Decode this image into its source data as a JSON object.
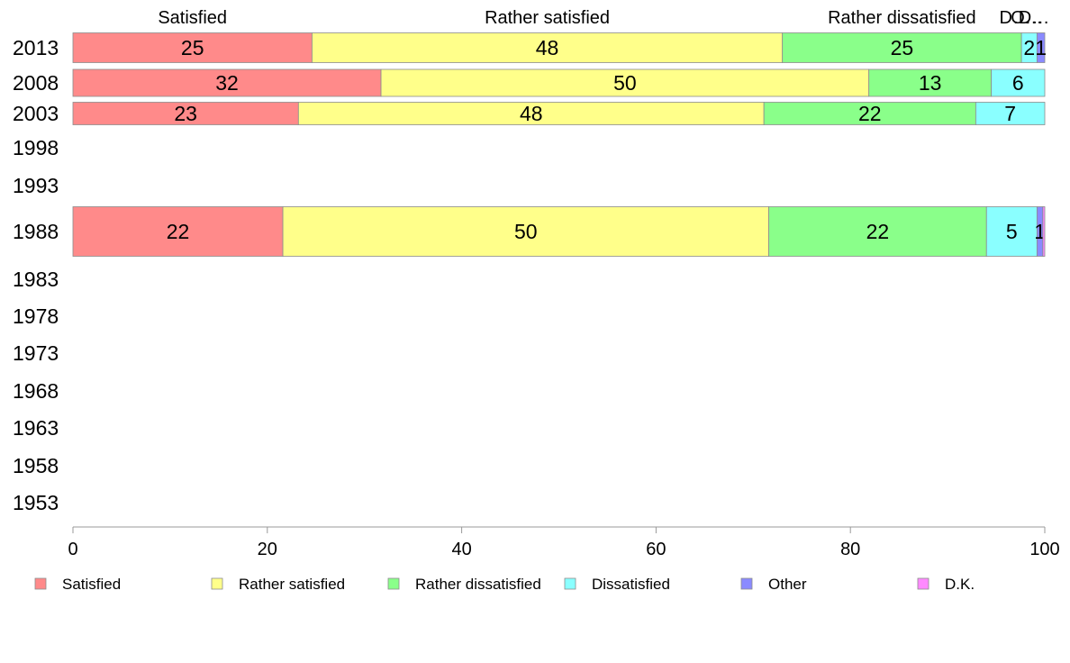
{
  "chart_data": {
    "type": "bar",
    "orientation": "horizontal",
    "stacked": true,
    "title": "",
    "xlabel": "",
    "ylabel": "",
    "xlim": [
      0,
      100
    ],
    "x_ticks": [
      "0",
      "20",
      "40",
      "60",
      "80",
      "100"
    ],
    "categories": [
      "2013",
      "2008",
      "2003",
      "1998",
      "1993",
      "1988",
      "1983",
      "1978",
      "1973",
      "1968",
      "1963",
      "1958",
      "1953"
    ],
    "series": [
      {
        "name": "Satisfied",
        "color": "#ff8a8a",
        "values": [
          24.6,
          31.7,
          23.2,
          null,
          null,
          21.6,
          null,
          null,
          null,
          null,
          null,
          null,
          null
        ],
        "labels": [
          "25",
          "32",
          "23",
          "",
          "",
          "22",
          "",
          "",
          "",
          "",
          "",
          "",
          ""
        ]
      },
      {
        "name": "Rather satisfied",
        "color": "#ffff8a",
        "values": [
          48.4,
          50.2,
          47.9,
          null,
          null,
          50.0,
          null,
          null,
          null,
          null,
          null,
          null,
          null
        ],
        "labels": [
          "48",
          "50",
          "48",
          "",
          "",
          "50",
          "",
          "",
          "",
          "",
          "",
          "",
          ""
        ]
      },
      {
        "name": "Rather dissatisfied",
        "color": "#8aff8a",
        "values": [
          24.6,
          12.6,
          21.8,
          null,
          null,
          22.4,
          null,
          null,
          null,
          null,
          null,
          null,
          null
        ],
        "labels": [
          "25",
          "13",
          "22",
          "",
          "",
          "22",
          "",
          "",
          "",
          "",
          "",
          "",
          ""
        ]
      },
      {
        "name": "Dissatisfied",
        "color": "#8affff",
        "values": [
          1.6,
          5.5,
          7.1,
          null,
          null,
          5.2,
          null,
          null,
          null,
          null,
          null,
          null,
          null
        ],
        "labels": [
          "2",
          "6",
          "7",
          "",
          "",
          "5",
          "",
          "",
          "",
          "",
          "",
          "",
          ""
        ]
      },
      {
        "name": "Other",
        "color": "#8a8aff",
        "values": [
          0.8,
          0,
          0,
          null,
          null,
          0.6,
          null,
          null,
          null,
          null,
          null,
          null,
          null
        ],
        "labels": [
          "1",
          "",
          "",
          "",
          "",
          "1",
          "",
          "",
          "",
          "",
          "",
          "",
          ""
        ]
      },
      {
        "name": "D.K.",
        "color": "#ff8aff",
        "values": [
          0,
          0,
          0,
          null,
          null,
          0.2,
          null,
          null,
          null,
          null,
          null,
          null,
          null
        ],
        "labels": [
          "",
          "",
          "",
          "",
          "",
          "",
          "",
          "",
          "",
          "",
          "",
          "",
          ""
        ]
      }
    ],
    "top_labels": [
      "Satisfied",
      "Rather satisfied",
      "Rather dissatisfied",
      "Dissatisfied",
      "Other",
      "D.K."
    ],
    "top_labels_shown": [
      "Satisfied",
      "Rather satisfied",
      "Rather dissatisfied",
      "D…",
      "O…",
      "D…"
    ],
    "legend": {
      "position": "bottom",
      "entries": [
        "Satisfied",
        "Rather satisfied",
        "Rather dissatisfied",
        "Dissatisfied",
        "Other",
        "D.K."
      ]
    },
    "grid": false
  }
}
